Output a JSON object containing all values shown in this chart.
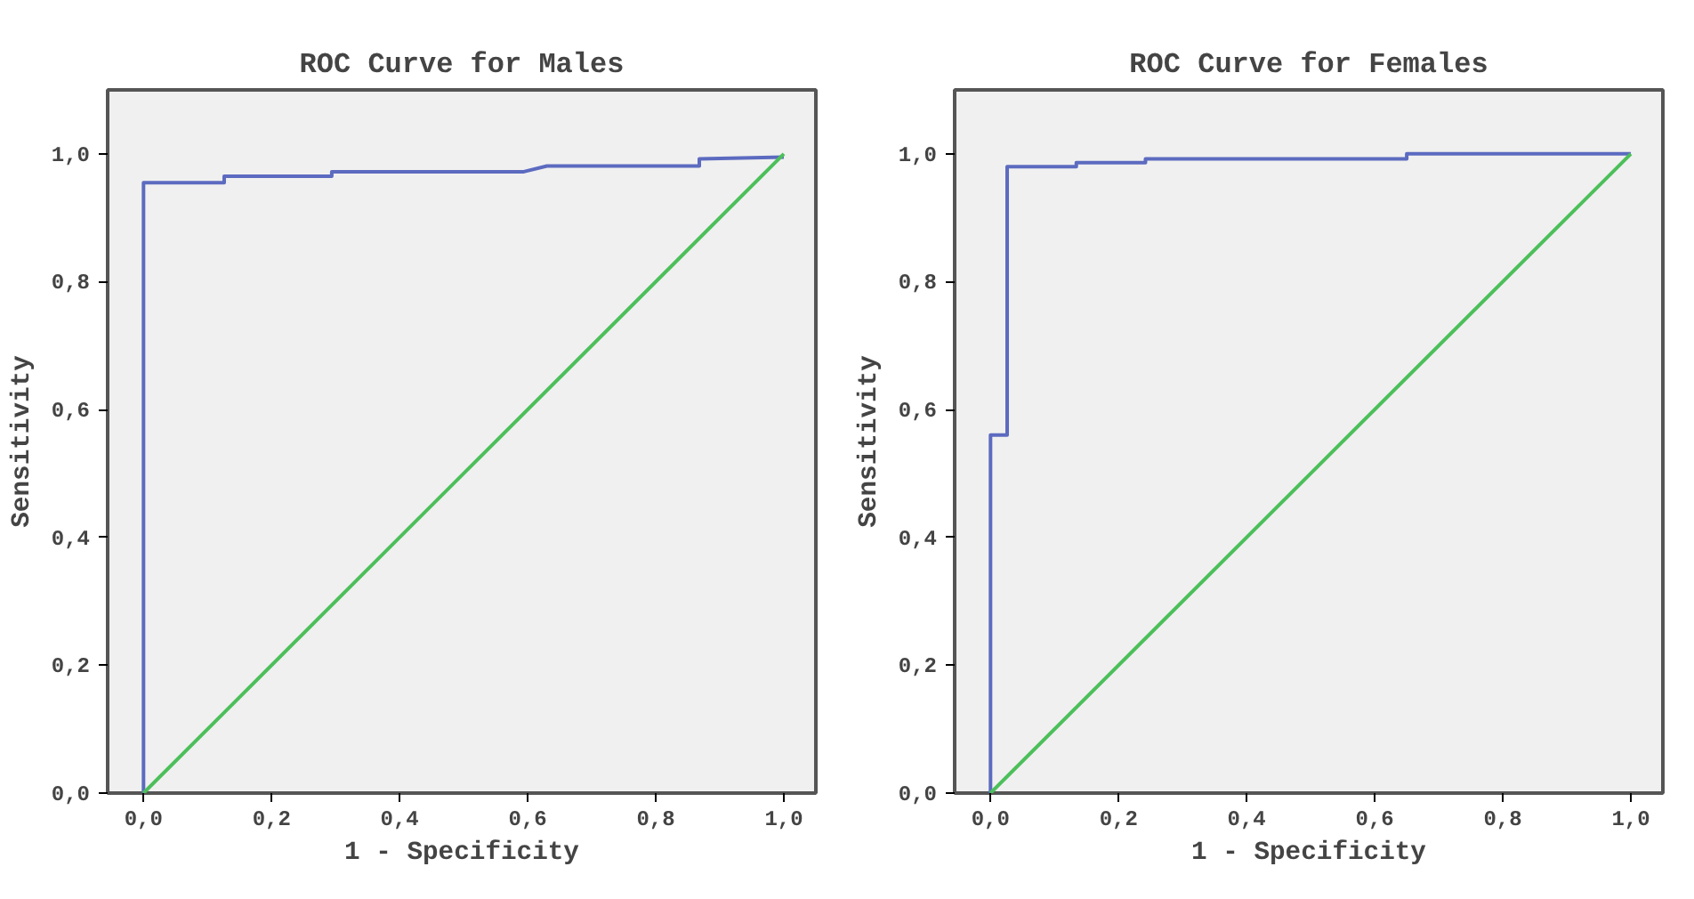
{
  "chart_data": [
    {
      "type": "line",
      "title": "ROC Curve for Males",
      "xlabel": "1 - Specificity",
      "ylabel": "Sensitivity",
      "xlim": [
        -0.056,
        1.05
      ],
      "ylim": [
        0,
        1.1
      ],
      "xticks": [
        {
          "value": 0,
          "label": "0,0"
        },
        {
          "value": 0.2,
          "label": "0,2"
        },
        {
          "value": 0.4,
          "label": "0,4"
        },
        {
          "value": 0.6,
          "label": "0,6"
        },
        {
          "value": 0.8,
          "label": "0,8"
        },
        {
          "value": 1.0,
          "label": "1,0"
        }
      ],
      "yticks": [
        {
          "value": 0,
          "label": "0,0"
        },
        {
          "value": 0.2,
          "label": "0,2"
        },
        {
          "value": 0.4,
          "label": "0,4"
        },
        {
          "value": 0.6,
          "label": "0,6"
        },
        {
          "value": 0.8,
          "label": "0,8"
        },
        {
          "value": 1.0,
          "label": "1,0"
        }
      ],
      "grid": false,
      "series": [
        {
          "color": "#5c6bc0",
          "x": [
            0,
            0,
            0.126,
            0.126,
            0.294,
            0.294,
            0.594,
            0.63,
            0.868,
            0.868,
            1.0
          ],
          "values": [
            0,
            0.955,
            0.955,
            0.965,
            0.965,
            0.972,
            0.972,
            0.981,
            0.981,
            0.992,
            0.995
          ]
        },
        {
          "color": "#4cbf5a",
          "x": [
            0,
            1
          ],
          "values": [
            0,
            1
          ]
        }
      ]
    },
    {
      "type": "line",
      "title": "ROC Curve for Females",
      "xlabel": "1 - Specificity",
      "ylabel": "Sensitivity",
      "xlim": [
        -0.056,
        1.05
      ],
      "ylim": [
        0,
        1.1
      ],
      "xticks": [
        {
          "value": 0,
          "label": "0,0"
        },
        {
          "value": 0.2,
          "label": "0,2"
        },
        {
          "value": 0.4,
          "label": "0,4"
        },
        {
          "value": 0.6,
          "label": "0,6"
        },
        {
          "value": 0.8,
          "label": "0,8"
        },
        {
          "value": 1.0,
          "label": "1,0"
        }
      ],
      "yticks": [
        {
          "value": 0,
          "label": "0,0"
        },
        {
          "value": 0.2,
          "label": "0,2"
        },
        {
          "value": 0.4,
          "label": "0,4"
        },
        {
          "value": 0.6,
          "label": "0,6"
        },
        {
          "value": 0.8,
          "label": "0,8"
        },
        {
          "value": 1.0,
          "label": "1,0"
        }
      ],
      "grid": false,
      "series": [
        {
          "color": "#5c6bc0",
          "x": [
            0,
            0,
            0.026,
            0.026,
            0.134,
            0.134,
            0.242,
            0.242,
            0.65,
            0.65,
            1.0
          ],
          "values": [
            0,
            0.56,
            0.56,
            0.98,
            0.98,
            0.986,
            0.986,
            0.992,
            0.992,
            1.0,
            1.0
          ]
        },
        {
          "color": "#4cbf5a",
          "x": [
            0,
            1
          ],
          "values": [
            0,
            1
          ]
        }
      ]
    }
  ]
}
